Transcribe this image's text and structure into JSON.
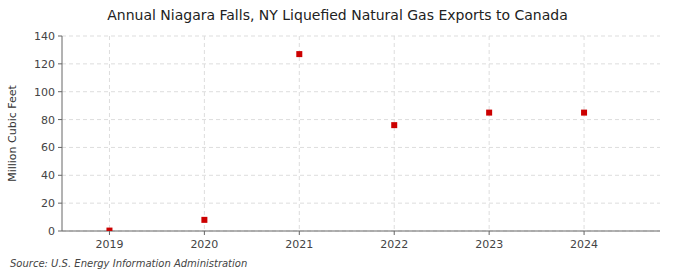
{
  "chart_data": {
    "type": "scatter",
    "title": "Annual Niagara Falls, NY Liquefied Natural Gas Exports to Canada",
    "y_label": "Million Cubic Feet",
    "source": "Source: U.S. Energy Information Administration",
    "x": [
      2019,
      2020,
      2021,
      2022,
      2023,
      2024
    ],
    "values": [
      0.3,
      8.0,
      127.0,
      76.0,
      85.0,
      85.0
    ],
    "color": "#cc0000",
    "marker": "square",
    "xlim": [
      2018.5,
      2024.8
    ],
    "ylim": [
      0,
      140
    ],
    "xticks": [
      2019,
      2020,
      2021,
      2022,
      2023,
      2024
    ],
    "yticks": [
      0,
      20,
      40,
      60,
      80,
      100,
      120,
      140
    ],
    "grid": true
  }
}
